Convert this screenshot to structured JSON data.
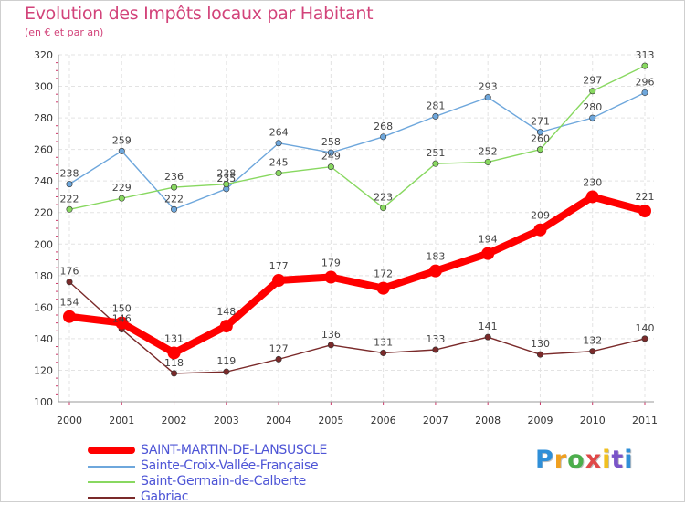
{
  "header": {
    "title": "Evolution des Impôts locaux par Habitant",
    "subtitle": "(en € et par an)"
  },
  "logo": {
    "letters": [
      "P",
      "r",
      "o",
      "x",
      "i",
      "t",
      "i"
    ],
    "colors": [
      "#2f8fd8",
      "#f0a020",
      "#4cae4c",
      "#e04848",
      "#f0c020",
      "#7a55c8",
      "#2f8fd8"
    ]
  },
  "chart_data": {
    "type": "line",
    "title": "Evolution des Impôts locaux par Habitant",
    "subtitle": "(en € et par an)",
    "xlabel": "",
    "ylabel": "",
    "x": [
      "2000",
      "2001",
      "2002",
      "2003",
      "2004",
      "2005",
      "2006",
      "2007",
      "2008",
      "2009",
      "2010",
      "2011"
    ],
    "ylim": [
      100,
      320
    ],
    "yticks": [
      "100",
      "120",
      "140",
      "160",
      "180",
      "200",
      "220",
      "240",
      "260",
      "280",
      "300",
      "320"
    ],
    "grid": true,
    "legend_position": "bottom-left",
    "series": [
      {
        "name": "SAINT-MARTIN-DE-LANSUSCLE",
        "color": "#ff0000",
        "emphasis": true,
        "values": [
          154,
          150,
          131,
          148,
          177,
          179,
          172,
          183,
          194,
          209,
          230,
          221
        ]
      },
      {
        "name": "Sainte-Croix-Vallée-Française",
        "color": "#6ea7dc",
        "emphasis": false,
        "values": [
          238,
          259,
          222,
          235,
          264,
          258,
          268,
          281,
          293,
          271,
          280,
          296
        ]
      },
      {
        "name": "Saint-Germain-de-Calberte",
        "color": "#88d860",
        "emphasis": false,
        "values": [
          222,
          229,
          236,
          238,
          245,
          249,
          223,
          251,
          252,
          260,
          297,
          313
        ]
      },
      {
        "name": "Gabriac",
        "color": "#7a2a2a",
        "emphasis": false,
        "values": [
          176,
          146,
          118,
          119,
          127,
          136,
          131,
          133,
          141,
          130,
          132,
          140
        ]
      }
    ]
  }
}
